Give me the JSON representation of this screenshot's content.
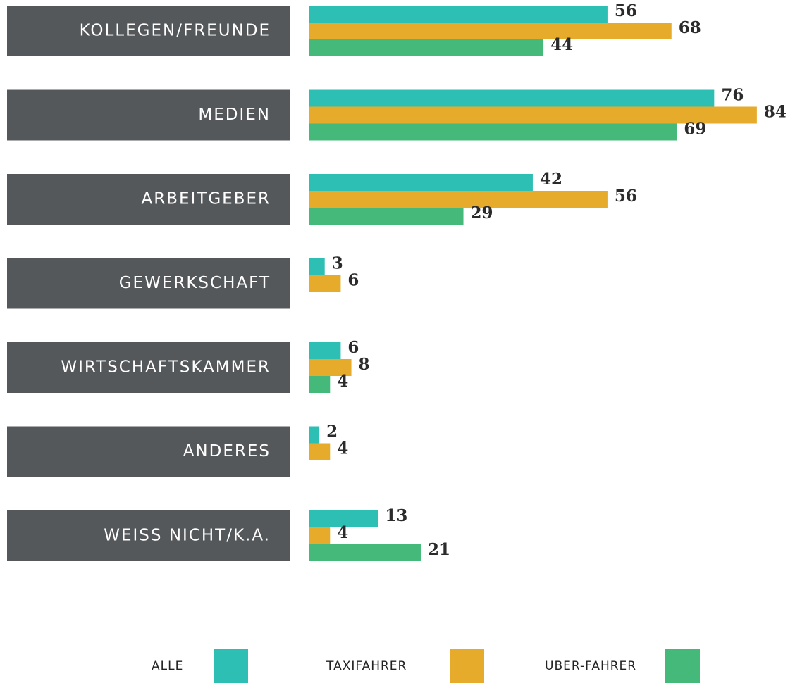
{
  "chart_data": {
    "type": "bar",
    "orientation": "horizontal",
    "categories": [
      "KOLLEGEN/FREUNDE",
      "MEDIEN",
      "ARBEITGEBER",
      "GEWERKSCHAFT",
      "WIRTSCHAFTSKAMMER",
      "ANDERES",
      "WEISS NICHT/K.A."
    ],
    "series": [
      {
        "name": "ALLE",
        "color": "#2dbfb4",
        "values": [
          56,
          76,
          42,
          3,
          6,
          2,
          13
        ]
      },
      {
        "name": "TAXIFAHRER",
        "color": "#e6ab2a",
        "values": [
          68,
          84,
          56,
          6,
          8,
          4,
          4
        ]
      },
      {
        "name": "UBER-FAHRER",
        "color": "#45b97a",
        "values": [
          44,
          69,
          29,
          null,
          4,
          null,
          21
        ]
      }
    ]
  }
}
